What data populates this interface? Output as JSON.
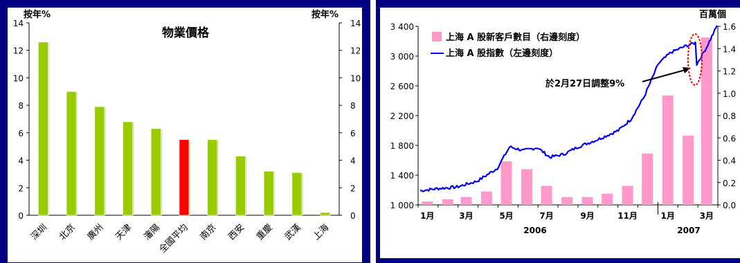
{
  "colors": {
    "frame_blue": "#000080",
    "bar_green": "#99CC00",
    "bar_red": "#FF0000",
    "bar_pink": "#FF99CC",
    "line_blue": "#0000FF",
    "oval_red": "#FF0000"
  },
  "chart_data": [
    {
      "type": "bar",
      "title": "物業價格",
      "y_left_label": "按年%",
      "y_right_label": "按年%",
      "ylim": [
        0,
        14
      ],
      "yticks": [
        "0",
        "2",
        "4",
        "6",
        "8",
        "10",
        "12",
        "14"
      ],
      "categories": [
        "深圳",
        "北京",
        "廣州",
        "天津",
        "瀋陽",
        "全國平均",
        "南京",
        "西安",
        "重慶",
        "武漢",
        "上海"
      ],
      "values": [
        12.6,
        9.0,
        7.9,
        6.8,
        6.3,
        5.5,
        5.5,
        4.3,
        3.2,
        3.1,
        0.2
      ],
      "highlight_category": "全國平均",
      "grid": false
    },
    {
      "type": "bar+line",
      "right_unit": "百萬個",
      "series": [
        {
          "name": "上海 A 股新客戶數目（右邊刻度）",
          "type": "bar",
          "axis": "right",
          "x": [
            "2006-01",
            "2006-02",
            "2006-03",
            "2006-04",
            "2006-05",
            "2006-06",
            "2006-07",
            "2006-08",
            "2006-09",
            "2006-10",
            "2006-11",
            "2006-12",
            "2007-01",
            "2007-02",
            "2007-03"
          ],
          "values": [
            0.03,
            0.05,
            0.07,
            0.12,
            0.39,
            0.32,
            0.17,
            0.07,
            0.07,
            0.1,
            0.17,
            0.46,
            0.98,
            0.62,
            1.5
          ]
        },
        {
          "name": "上海 A 股指數（左邊刻度）",
          "type": "line",
          "axis": "left",
          "x": [
            "2006-01-04",
            "2006-02-01",
            "2006-03-01",
            "2006-04-01",
            "2006-05-01",
            "2006-05-20",
            "2006-06-10",
            "2006-07-01",
            "2006-07-20",
            "2006-08-10",
            "2006-09-01",
            "2006-10-01",
            "2006-11-01",
            "2006-11-20",
            "2006-12-10",
            "2007-01-01",
            "2007-01-20",
            "2007-02-10",
            "2007-02-26",
            "2007-02-28",
            "2007-03-15",
            "2007-03-31"
          ],
          "values": [
            1190,
            1220,
            1240,
            1320,
            1490,
            1780,
            1730,
            1770,
            1640,
            1680,
            1780,
            1880,
            2000,
            2150,
            2450,
            2900,
            3050,
            3130,
            3180,
            2890,
            3120,
            3410
          ]
        }
      ],
      "y_left_ticks": [
        "1 000",
        "1 400",
        "1 800",
        "2 200",
        "2 600",
        "3 000",
        "3 400"
      ],
      "ylim_left": [
        1000,
        3400
      ],
      "y_right_ticks": [
        "0.0",
        "0.2",
        "0.4",
        "0.6",
        "0.8",
        "1.0",
        "1.2",
        "1.4",
        "1.6"
      ],
      "ylim_right": [
        0,
        1.6
      ],
      "x_tick_labels": [
        "1月",
        "3月",
        "5月",
        "7月",
        "9月",
        "11月",
        "1月",
        "3月"
      ],
      "x_tick_months": [
        "2006-01",
        "2006-03",
        "2006-05",
        "2006-07",
        "2006-09",
        "2006-11",
        "2007-01",
        "2007-03"
      ],
      "year_labels": [
        "2006",
        "2007"
      ],
      "annotation": "於2月27日調整9%",
      "legend_position": "top-left"
    }
  ]
}
